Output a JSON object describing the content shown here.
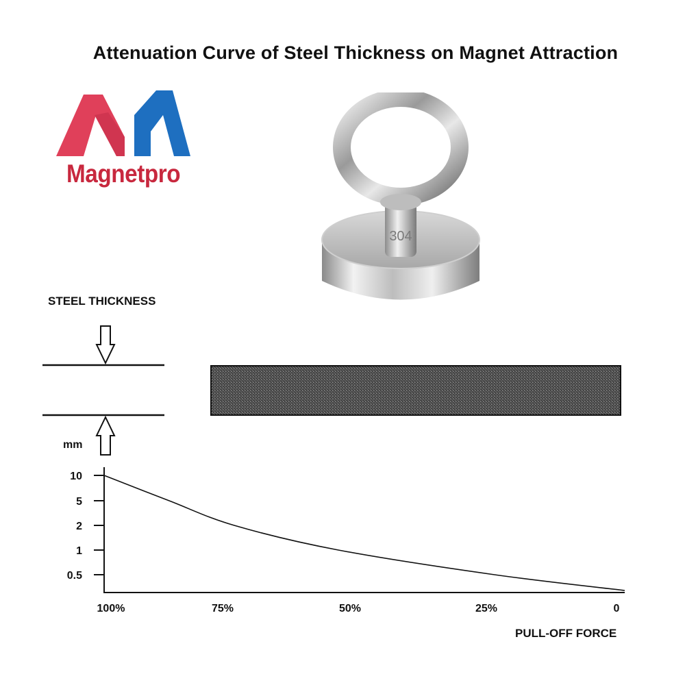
{
  "title": "Attenuation Curve of Steel Thickness on Magnet Attraction",
  "logo": {
    "text": "Magnetpro",
    "colors": {
      "red": "#e0405a",
      "blue": "#1e6fc0",
      "text": "#c8283e"
    }
  },
  "product": {
    "engraving": "304"
  },
  "diagram": {
    "steel_thickness_label": "STEEL THICKNESS"
  },
  "chart_data": {
    "type": "line",
    "ylabel": "mm",
    "xlabel": "PULL-OFF FORCE",
    "x_ticks": [
      "100%",
      "75%",
      "50%",
      "25%",
      "0"
    ],
    "y_ticks": [
      "10",
      "5",
      "2",
      "1",
      "0.5"
    ],
    "x_direction": "decreasing",
    "series": [
      {
        "points": [
          {
            "force_pct": 100,
            "thickness_mm": 10
          },
          {
            "force_pct": 87.5,
            "thickness_mm": 5
          },
          {
            "force_pct": 75,
            "thickness_mm": 2
          },
          {
            "force_pct": 55,
            "thickness_mm": 1
          },
          {
            "force_pct": 25,
            "thickness_mm": 0.5
          },
          {
            "force_pct": 0,
            "thickness_mm": 0.1
          }
        ]
      }
    ]
  }
}
